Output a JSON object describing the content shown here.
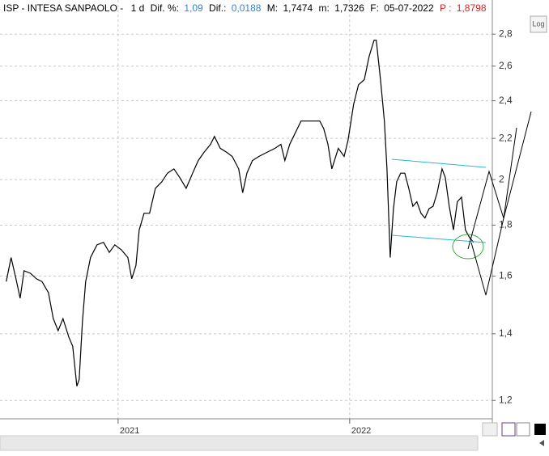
{
  "chart_data": {
    "type": "line",
    "title": "ISP - INTESA SANPAOLO -",
    "period": "1 d",
    "info": [
      {
        "label": "Dif. %:",
        "value": "1,09"
      },
      {
        "label": "Dif.:",
        "value": "0,0188"
      },
      {
        "label": "M:",
        "value": "1,7474"
      },
      {
        "label": "m:",
        "value": "1,7326"
      },
      {
        "label": "F:",
        "value": "05-07-2022"
      },
      {
        "label": "P :",
        "value": "1,8798"
      }
    ],
    "log_button": "Log",
    "log_scale": true,
    "grid": true,
    "x": [
      2020.517,
      2020.538,
      2020.559,
      2020.577,
      2020.594,
      2020.622,
      2020.647,
      2020.671,
      2020.699,
      2020.72,
      2020.741,
      2020.762,
      2020.787,
      2020.804,
      2020.822,
      2020.832,
      2020.846,
      2020.86,
      2020.881,
      2020.909,
      2020.937,
      2020.962,
      2020.986,
      2021.014,
      2021.042,
      2021.059,
      2021.077,
      2021.091,
      2021.112,
      2021.136,
      2021.161,
      2021.189,
      2021.213,
      2021.241,
      2021.266,
      2021.294,
      2021.322,
      2021.346,
      2021.371,
      2021.399,
      2021.416,
      2021.441,
      2021.469,
      2021.493,
      2021.521,
      2021.538,
      2021.556,
      2021.58,
      2021.608,
      2021.643,
      2021.678,
      2021.703,
      2021.72,
      2021.741,
      2021.766,
      2021.79,
      2021.818,
      2021.846,
      2021.871,
      2021.888,
      2021.906,
      2021.923,
      2021.951,
      2021.976,
      2021.993,
      2022.017,
      2022.038,
      2022.063,
      2022.084,
      2022.105,
      2022.115,
      2022.133,
      2022.15,
      2022.161,
      2022.175,
      2022.189,
      2022.203,
      2022.22,
      2022.238,
      2022.255,
      2022.273,
      2022.29,
      2022.308,
      2022.325,
      2022.343,
      2022.36,
      2022.378,
      2022.399,
      2022.413,
      2022.43,
      2022.448,
      2022.465,
      2022.483,
      2022.5,
      2022.517,
      2022.535
    ],
    "series": [
      {
        "color": "#000000",
        "values": [
          1.58,
          1.67,
          1.59,
          1.52,
          1.62,
          1.61,
          1.59,
          1.58,
          1.54,
          1.45,
          1.41,
          1.45,
          1.39,
          1.36,
          1.24,
          1.26,
          1.44,
          1.58,
          1.67,
          1.72,
          1.73,
          1.69,
          1.72,
          1.7,
          1.67,
          1.59,
          1.64,
          1.78,
          1.85,
          1.85,
          1.96,
          1.99,
          2.03,
          2.05,
          2.01,
          1.96,
          2.03,
          2.09,
          2.13,
          2.17,
          2.21,
          2.15,
          2.13,
          2.11,
          2.05,
          1.94,
          2.03,
          2.09,
          2.11,
          2.13,
          2.15,
          2.17,
          2.09,
          2.17,
          2.23,
          2.29,
          2.29,
          2.29,
          2.29,
          2.25,
          2.17,
          2.05,
          2.15,
          2.11,
          2.19,
          2.38,
          2.49,
          2.52,
          2.66,
          2.76,
          2.76,
          2.52,
          2.29,
          2.05,
          1.67,
          1.87,
          1.99,
          2.03,
          2.03,
          1.96,
          1.88,
          1.9,
          1.85,
          1.83,
          1.87,
          1.88,
          1.94,
          2.05,
          2.01,
          1.88,
          1.78,
          1.9,
          1.92,
          1.78,
          1.75,
          1.73
        ]
      }
    ],
    "xlim": [
      2020.49,
      2022.616
    ],
    "xticks": [
      2021,
      2022
    ],
    "ylim": [
      1.15,
      3.03
    ],
    "yticks": [
      {
        "value": 1.2,
        "label": "1,2"
      },
      {
        "value": 1.4,
        "label": "1,4"
      },
      {
        "value": 1.6,
        "label": "1,6"
      },
      {
        "value": 1.8,
        "label": "1,8"
      },
      {
        "value": 2,
        "label": "2"
      },
      {
        "value": 2.2,
        "label": "2,2"
      },
      {
        "value": 2.4,
        "label": "2,4"
      },
      {
        "value": 2.6,
        "label": "2,6"
      },
      {
        "value": 2.8,
        "label": "2,8"
      }
    ]
  }
}
